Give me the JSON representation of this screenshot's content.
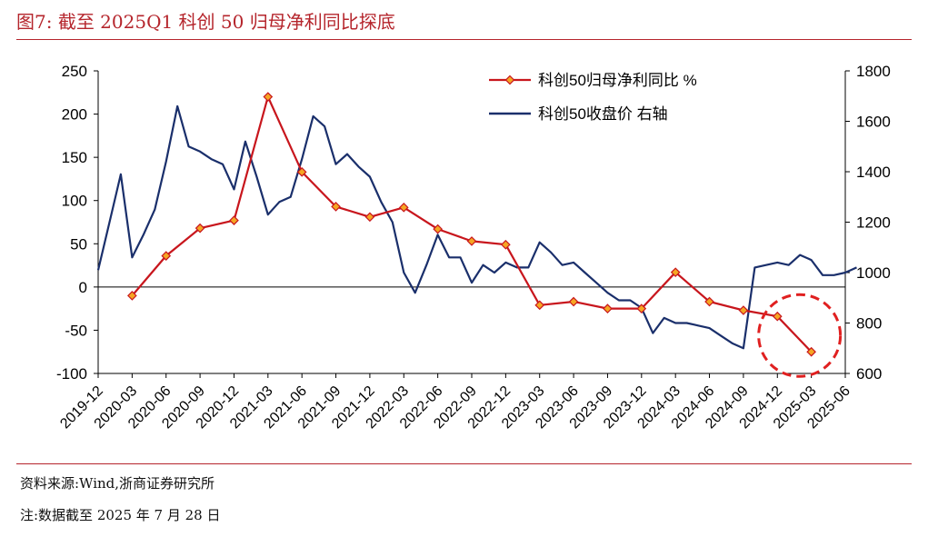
{
  "header": {
    "title": "图7:   截至 2025Q1 科创 50 归母净利同比探底"
  },
  "footer": {
    "source": "资料来源:Wind,浙商证券研究所",
    "note": "注:数据截至 2025 年 7 月 28 日"
  },
  "colors": {
    "accent": "#b5252c",
    "profit_line": "#c8161d",
    "index_line": "#1a2f6b",
    "marker_fill": "#f5a623"
  },
  "chart_data": {
    "type": "line",
    "x_ticks": [
      "2019-12",
      "2020-03",
      "2020-06",
      "2020-09",
      "2020-12",
      "2021-03",
      "2021-06",
      "2021-09",
      "2021-12",
      "2022-03",
      "2022-06",
      "2022-09",
      "2022-12",
      "2023-03",
      "2023-06",
      "2023-09",
      "2023-12",
      "2024-03",
      "2024-06",
      "2024-09",
      "2024-12",
      "2025-03",
      "2025-06"
    ],
    "y_left": {
      "ticks": [
        250,
        200,
        150,
        100,
        50,
        0,
        -50,
        -100
      ],
      "range": [
        -100,
        250
      ],
      "unit": "%"
    },
    "y_right": {
      "ticks": [
        1800,
        1600,
        1400,
        1200,
        1000,
        800,
        600
      ],
      "range": [
        600,
        1800
      ]
    },
    "legend_position": "top-right",
    "series": [
      {
        "name": "科创50归母净利同比 %",
        "axis": "left",
        "x": [
          "2020-03",
          "2020-06",
          "2020-09",
          "2020-12",
          "2021-03",
          "2021-06",
          "2021-09",
          "2021-12",
          "2022-03",
          "2022-06",
          "2022-09",
          "2022-12",
          "2023-03",
          "2023-06",
          "2023-09",
          "2023-12",
          "2024-03",
          "2024-06",
          "2024-09",
          "2024-12",
          "2025-03"
        ],
        "values": [
          -10,
          36,
          68,
          77,
          220,
          133,
          93,
          81,
          92,
          67,
          53,
          49,
          -21,
          -17,
          -25,
          -25,
          17,
          -17,
          -27,
          -34,
          -75
        ]
      },
      {
        "name": "科创50收盘价 右轴",
        "axis": "right",
        "x": [
          "2019-12",
          "2020-01",
          "2020-02",
          "2020-03",
          "2020-04",
          "2020-05",
          "2020-06",
          "2020-07",
          "2020-08",
          "2020-09",
          "2020-10",
          "2020-11",
          "2020-12",
          "2021-01",
          "2021-02",
          "2021-03",
          "2021-04",
          "2021-05",
          "2021-06",
          "2021-07",
          "2021-08",
          "2021-09",
          "2021-10",
          "2021-11",
          "2021-12",
          "2022-01",
          "2022-02",
          "2022-03",
          "2022-04",
          "2022-05",
          "2022-06",
          "2022-07",
          "2022-08",
          "2022-09",
          "2022-10",
          "2022-11",
          "2022-12",
          "2023-01",
          "2023-02",
          "2023-03",
          "2023-04",
          "2023-05",
          "2023-06",
          "2023-07",
          "2023-08",
          "2023-09",
          "2023-10",
          "2023-11",
          "2023-12",
          "2024-01",
          "2024-02",
          "2024-03",
          "2024-04",
          "2024-05",
          "2024-06",
          "2024-07",
          "2024-08",
          "2024-09",
          "2024-10",
          "2024-11",
          "2024-12",
          "2025-01",
          "2025-02",
          "2025-03",
          "2025-04",
          "2025-05",
          "2025-06",
          "2025-07"
        ],
        "values": [
          1010,
          1200,
          1390,
          1060,
          1150,
          1250,
          1440,
          1660,
          1500,
          1480,
          1450,
          1430,
          1330,
          1520,
          1380,
          1230,
          1280,
          1300,
          1450,
          1620,
          1580,
          1430,
          1470,
          1420,
          1380,
          1280,
          1200,
          1000,
          920,
          1030,
          1150,
          1060,
          1060,
          960,
          1030,
          1000,
          1040,
          1020,
          1020,
          1120,
          1080,
          1030,
          1040,
          1000,
          960,
          920,
          890,
          890,
          860,
          760,
          820,
          800,
          800,
          790,
          780,
          750,
          720,
          700,
          1020,
          1030,
          1040,
          1030,
          1070,
          1050,
          990,
          990,
          1000,
          1020
        ]
      }
    ]
  }
}
